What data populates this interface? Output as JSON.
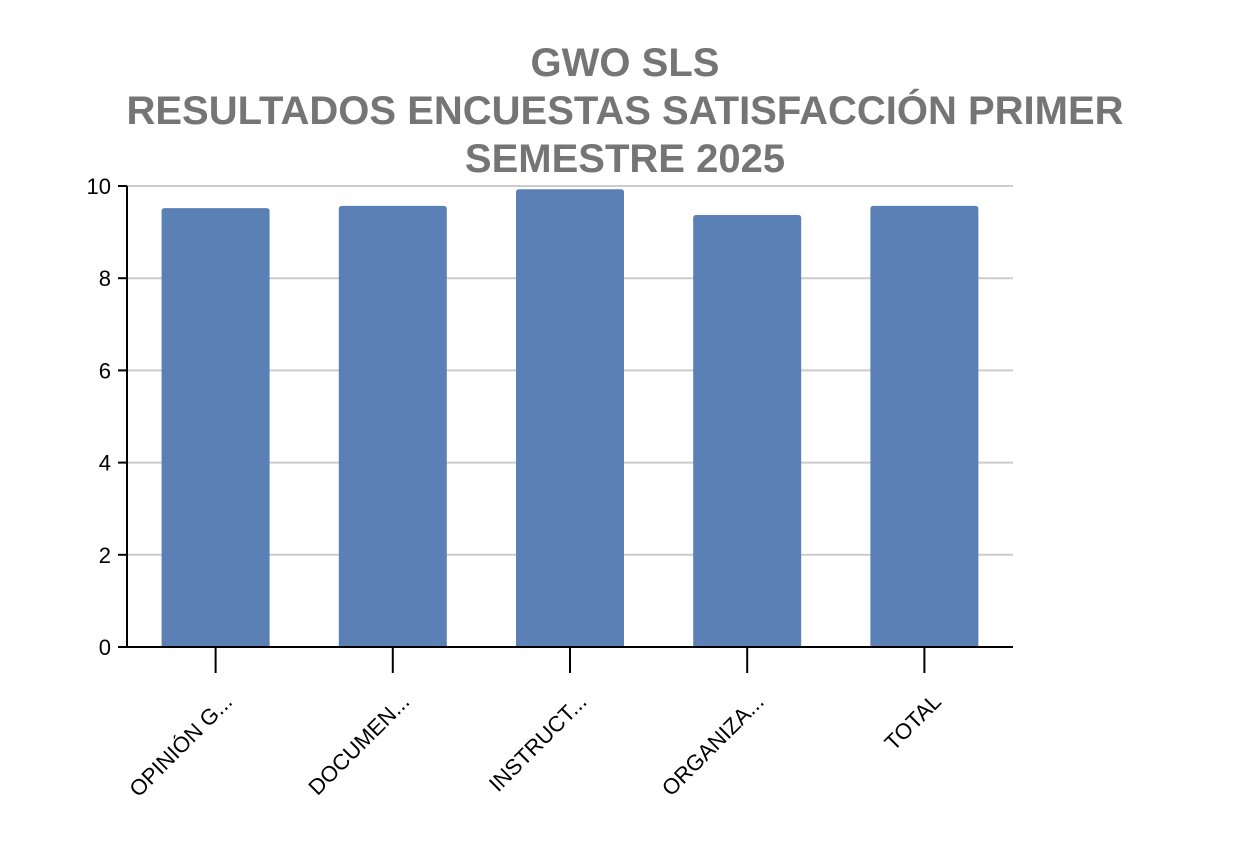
{
  "chart_data": {
    "type": "bar",
    "title_lines": [
      "GWO SLS",
      "RESULTADOS ENCUESTAS SATISFACCIÓN PRIMER",
      "SEMESTRE 2025"
    ],
    "categories": [
      "OPINIÓN G...",
      "DOCUMEN...",
      "INSTRUCT...",
      "ORGANIZA...",
      "TOTAL"
    ],
    "values": [
      9.52,
      9.57,
      9.93,
      9.37,
      9.57
    ],
    "y_ticks": [
      "0",
      "2",
      "4",
      "6",
      "8",
      "10"
    ],
    "ylim": [
      0,
      10
    ],
    "grid": true,
    "legend": "none",
    "colors": {
      "bar": "#5b80b6",
      "title": "#757575",
      "grid": "#cccccc",
      "axis": "#000000"
    }
  }
}
